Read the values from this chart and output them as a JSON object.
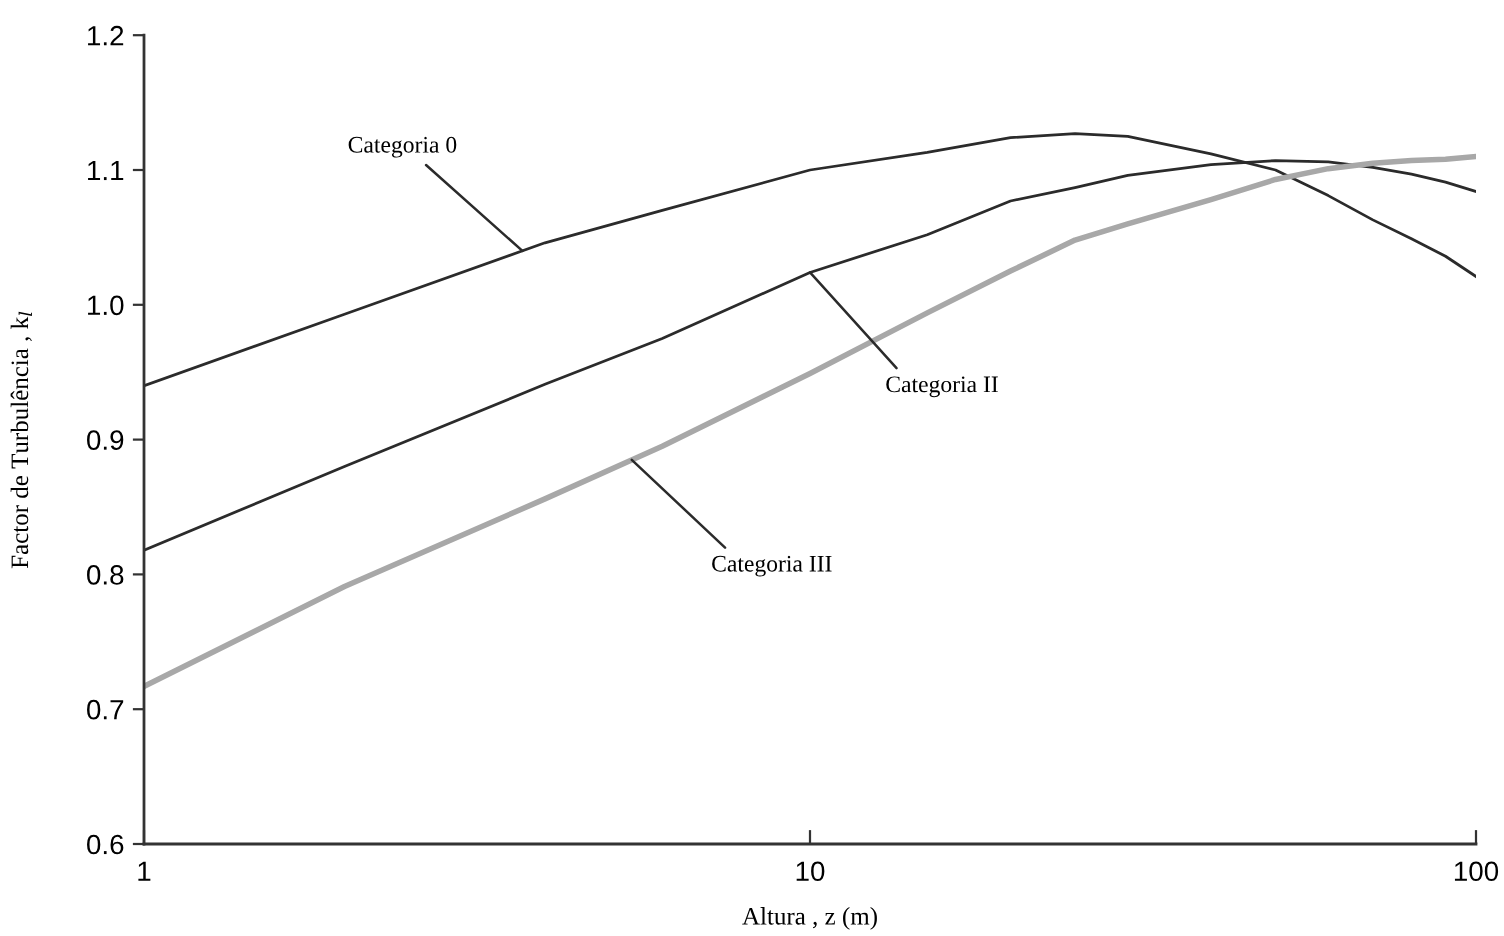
{
  "chart_data": {
    "type": "line",
    "xlabel": "Altura , z (m)",
    "ylabel": "Factor de Turbulência , k$_{l}$",
    "x": [
      1,
      2,
      4,
      6,
      10,
      15,
      20,
      25,
      30,
      40,
      50,
      60,
      70,
      80,
      90,
      100
    ],
    "series": [
      {
        "color": "#2b2b2b",
        "values": [
          0.94,
          0.993,
          1.046,
          1.07,
          1.1,
          1.113,
          1.124,
          1.127,
          1.125,
          1.112,
          1.1,
          1.081,
          1.063,
          1.049,
          1.036,
          1.021
        ]
      },
      {
        "color": "#2b2b2b",
        "values": [
          0.818,
          0.88,
          0.941,
          0.975,
          1.024,
          1.052,
          1.077,
          1.087,
          1.096,
          1.104,
          1.107,
          1.106,
          1.102,
          1.097,
          1.091,
          1.084
        ]
      },
      {
        "color": "#a8a8a8",
        "values": [
          0.717,
          0.791,
          0.856,
          0.895,
          0.949,
          0.994,
          1.025,
          1.048,
          1.06,
          1.078,
          1.093,
          1.101,
          1.105,
          1.107,
          1.108,
          1.11
        ]
      }
    ],
    "annotations": [
      {
        "text": "Categoria 0",
        "x": 3.7,
        "y": 1.04
      },
      {
        "text": "Categoria II",
        "x": 10,
        "y": 1.024
      },
      {
        "text": "Categoria III",
        "x": 5.4,
        "y": 0.885
      }
    ],
    "log": "x",
    "xlim": [
      1,
      100
    ],
    "xticks": [
      1,
      10,
      100
    ],
    "ylim": [
      0.6,
      1.2
    ],
    "yticks": [
      0.6,
      0.7,
      0.8,
      0.9,
      {
        "value": 1.0,
        "label": "1.0"
      },
      1.1,
      1.2
    ],
    "grid": false,
    "marker": "none",
    "line_style": "solid"
  }
}
